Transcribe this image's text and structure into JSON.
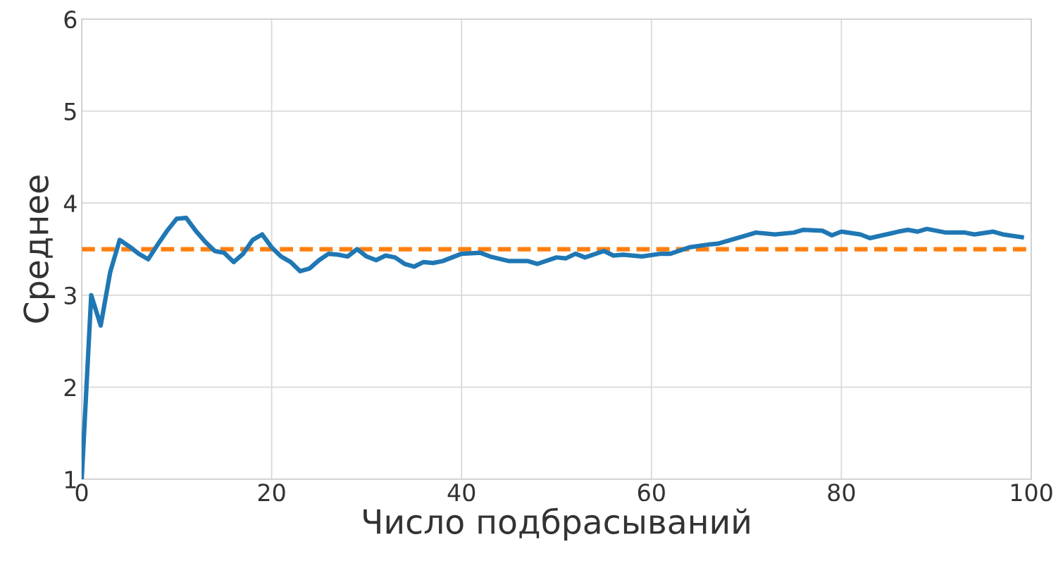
{
  "chart_data": {
    "type": "line",
    "xlabel": "Число подбрасываний",
    "ylabel": "Среднее",
    "x": [
      0,
      1,
      2,
      3,
      4,
      5,
      6,
      7,
      8,
      9,
      10,
      11,
      12,
      13,
      14,
      15,
      16,
      17,
      18,
      19,
      20,
      21,
      22,
      23,
      24,
      25,
      26,
      27,
      28,
      29,
      30,
      31,
      32,
      33,
      34,
      35,
      36,
      37,
      38,
      39,
      40,
      42,
      43,
      45,
      47,
      48,
      50,
      51,
      52,
      53,
      55,
      56,
      57,
      59,
      61,
      62,
      64,
      66,
      67,
      70,
      71,
      73,
      75,
      76,
      78,
      79,
      80,
      82,
      83,
      86,
      87,
      88,
      89,
      91,
      93,
      94,
      96,
      97,
      99
    ],
    "series": [
      {
        "color": "#1f77b4",
        "values": [
          1.0,
          3.0,
          2.67,
          3.25,
          3.6,
          3.53,
          3.45,
          3.39,
          3.55,
          3.7,
          3.83,
          3.84,
          3.7,
          3.58,
          3.48,
          3.46,
          3.36,
          3.45,
          3.6,
          3.66,
          3.52,
          3.42,
          3.36,
          3.26,
          3.29,
          3.38,
          3.45,
          3.44,
          3.42,
          3.5,
          3.42,
          3.38,
          3.43,
          3.41,
          3.34,
          3.31,
          3.36,
          3.35,
          3.37,
          3.41,
          3.45,
          3.46,
          3.42,
          3.37,
          3.37,
          3.34,
          3.41,
          3.4,
          3.45,
          3.41,
          3.48,
          3.43,
          3.44,
          3.42,
          3.45,
          3.45,
          3.52,
          3.55,
          3.56,
          3.65,
          3.68,
          3.66,
          3.68,
          3.71,
          3.7,
          3.65,
          3.69,
          3.66,
          3.62,
          3.69,
          3.71,
          3.69,
          3.72,
          3.68,
          3.68,
          3.66,
          3.69,
          3.66,
          3.63
        ]
      }
    ],
    "ref_lines": [
      {
        "axis": "y",
        "value": 3.5,
        "color": "#ff7f0e",
        "line_style": "dashed"
      }
    ],
    "xlim": [
      0,
      100
    ],
    "ylim": [
      1,
      6
    ],
    "xticks": [
      0,
      20,
      40,
      60,
      80,
      100
    ],
    "yticks": [
      1,
      2,
      3,
      4,
      5,
      6
    ],
    "grid": true,
    "line_style": "solid",
    "marker": "none",
    "legend": false
  }
}
